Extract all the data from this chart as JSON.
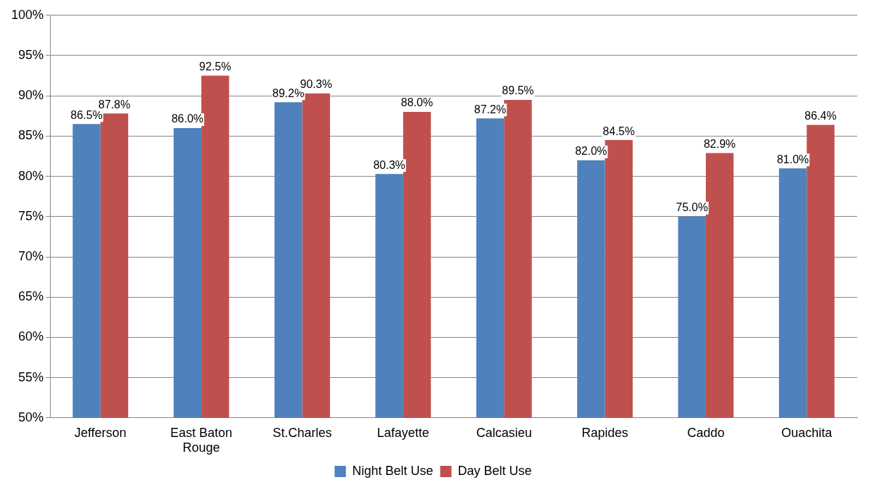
{
  "chart_data": {
    "type": "bar",
    "categories": [
      "Jefferson",
      "East Baton Rouge",
      "St.Charles",
      "Lafayette",
      "Calcasieu",
      "Rapides",
      "Caddo",
      "Ouachita"
    ],
    "series": [
      {
        "name": "Night Belt Use",
        "color": "#4f81bd",
        "values": [
          86.5,
          86.0,
          89.2,
          80.3,
          87.2,
          82.0,
          75.0,
          81.0
        ],
        "value_labels": [
          "86.5%",
          "86.0%",
          "89.2%",
          "80.3%",
          "87.2%",
          "82.0%",
          "75.0%",
          "81.0%"
        ]
      },
      {
        "name": "Day Belt Use",
        "color": "#c0504d",
        "values": [
          87.8,
          92.5,
          90.3,
          88.0,
          89.5,
          84.5,
          82.9,
          86.4
        ],
        "value_labels": [
          "87.8%",
          "92.5%",
          "90.3%",
          "88.0%",
          "89.5%",
          "84.5%",
          "82.9%",
          "86.4%"
        ]
      }
    ],
    "ylim": [
      50,
      100
    ],
    "yticks": [
      {
        "value": 50,
        "label": "50%"
      },
      {
        "value": 55,
        "label": "55%"
      },
      {
        "value": 60,
        "label": "60%"
      },
      {
        "value": 65,
        "label": "65%"
      },
      {
        "value": 70,
        "label": "70%"
      },
      {
        "value": 75,
        "label": "75%"
      },
      {
        "value": 80,
        "label": "80%"
      },
      {
        "value": 85,
        "label": "85%"
      },
      {
        "value": 90,
        "label": "90%"
      },
      {
        "value": 95,
        "label": "95%"
      },
      {
        "value": 100,
        "label": "100%"
      }
    ],
    "grid": "y",
    "legend": "bottom"
  }
}
